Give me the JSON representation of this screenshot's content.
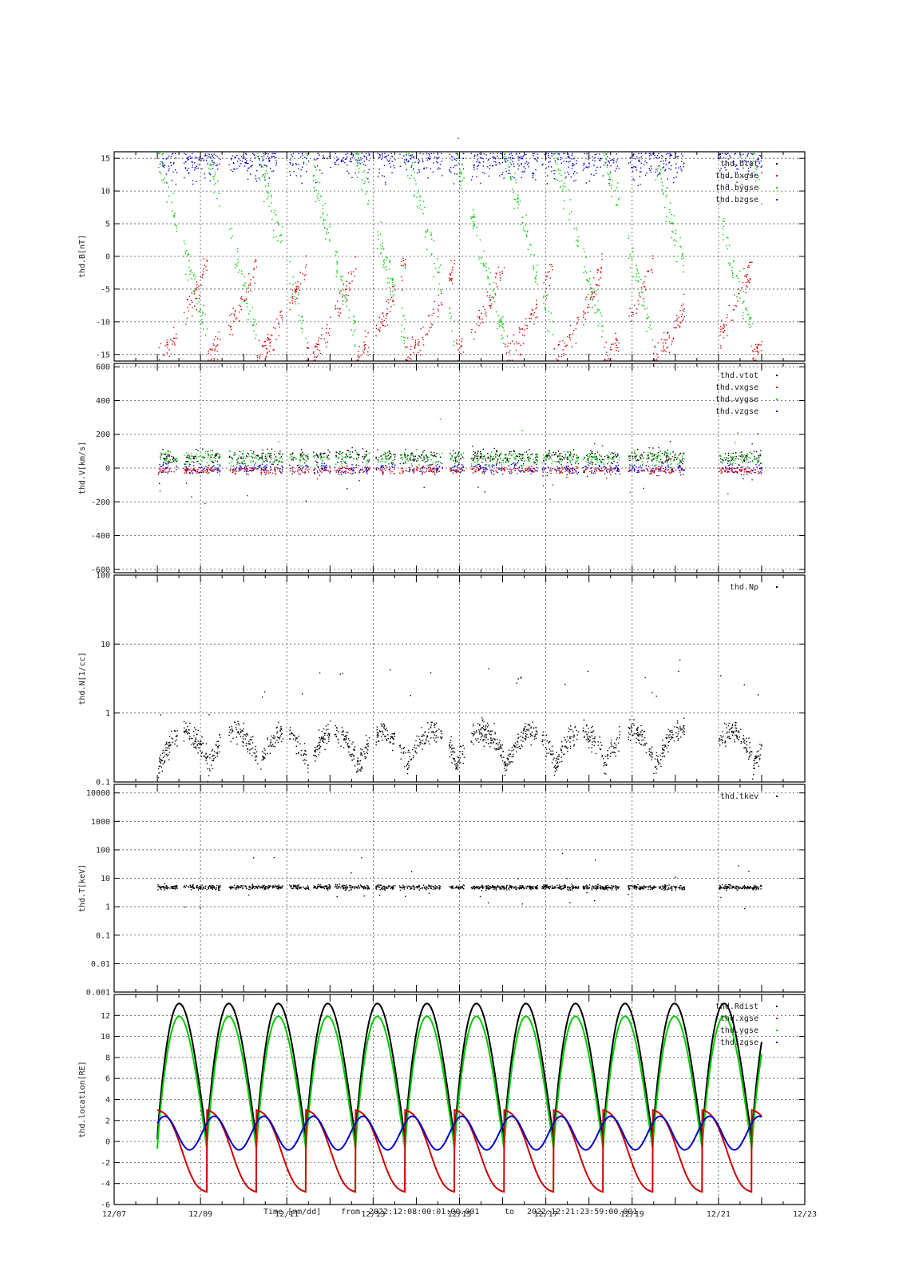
{
  "page_title": "-",
  "footer": {
    "time_label": "Time [mm/dd]",
    "from_label": "from",
    "from_value": "2022:12:08:00:01:00.001",
    "to_label": "to",
    "to_value": "2022:12:21:23:59:00.001"
  },
  "chart_data": [
    {
      "type": "scatter",
      "ylabel": "thd.B[nT]",
      "ylim": [
        -16,
        16
      ],
      "yticks": [
        15,
        10,
        5,
        0,
        -5,
        -10,
        -15
      ],
      "ytick_labels": [
        "15",
        "10",
        "5",
        "0",
        "-5",
        "-10",
        "-15"
      ],
      "log": false,
      "grid": true,
      "legend_position": "top-right",
      "series": [
        {
          "name": "thd.btot",
          "color": "#000000"
        },
        {
          "name": "thd.bxgse",
          "color": "#d00000"
        },
        {
          "name": "thd.bygse",
          "color": "#00cc00"
        },
        {
          "name": "thd.bzgse",
          "color": "#0000cc"
        }
      ]
    },
    {
      "type": "scatter",
      "ylabel": "thd.V[km/s]",
      "ylim": [
        -620,
        620
      ],
      "yticks": [
        600,
        400,
        200,
        0,
        -200,
        -400,
        -600
      ],
      "ytick_labels": [
        "600",
        "400",
        "200",
        "0",
        "-200",
        "-400",
        "-600"
      ],
      "log": false,
      "grid": true,
      "legend_position": "top-right",
      "series": [
        {
          "name": "thd.vtot",
          "color": "#000000"
        },
        {
          "name": "thd.vxgse",
          "color": "#d00000"
        },
        {
          "name": "thd.vygse",
          "color": "#00cc00"
        },
        {
          "name": "thd.vzgse",
          "color": "#0000cc"
        }
      ]
    },
    {
      "type": "scatter",
      "ylabel": "thd.N[1/cc]",
      "ylim": [
        0.1,
        100
      ],
      "yticks": [
        100,
        10,
        1,
        0.1
      ],
      "ytick_labels": [
        "100",
        "10",
        "1",
        "0.1"
      ],
      "log": true,
      "grid": true,
      "legend_position": "top-right",
      "series": [
        {
          "name": "thd.Np",
          "color": "#000000"
        }
      ]
    },
    {
      "type": "scatter",
      "ylabel": "thd.T[keV]",
      "ylim": [
        0.001,
        20000
      ],
      "yticks": [
        10000,
        1000,
        100,
        10,
        1,
        0.1,
        0.01,
        0.001
      ],
      "ytick_labels": [
        "10000",
        "1000",
        "100",
        "10",
        "1",
        "0.1",
        "0.01",
        "0.001"
      ],
      "log": true,
      "grid": true,
      "legend_position": "top-right",
      "series": [
        {
          "name": "thd.tkev",
          "color": "#000000"
        }
      ]
    },
    {
      "type": "line",
      "ylabel": "thd.location[RE]",
      "ylim": [
        -6,
        14
      ],
      "yticks": [
        12,
        10,
        8,
        6,
        4,
        2,
        0,
        -2,
        -4,
        -6
      ],
      "ytick_labels": [
        "12",
        "10",
        "8",
        "6",
        "4",
        "2",
        "0",
        "-2",
        "-4",
        "-6"
      ],
      "log": false,
      "grid": true,
      "legend_position": "top-right",
      "series": [
        {
          "name": "thd.Rdist",
          "color": "#000000"
        },
        {
          "name": "thd.xgse",
          "color": "#d00000"
        },
        {
          "name": "thd.ygse",
          "color": "#00cc00"
        },
        {
          "name": "thd.zgse",
          "color": "#0000cc"
        }
      ]
    }
  ],
  "x_axis": {
    "type": "date",
    "xlim": [
      "12/07",
      "12/23"
    ],
    "ticks": [
      "12/07",
      "12/09",
      "12/11",
      "12/13",
      "12/15",
      "12/17",
      "12/19",
      "12/21",
      "12/23"
    ],
    "data_start": "12/08",
    "data_end": "12/22"
  }
}
